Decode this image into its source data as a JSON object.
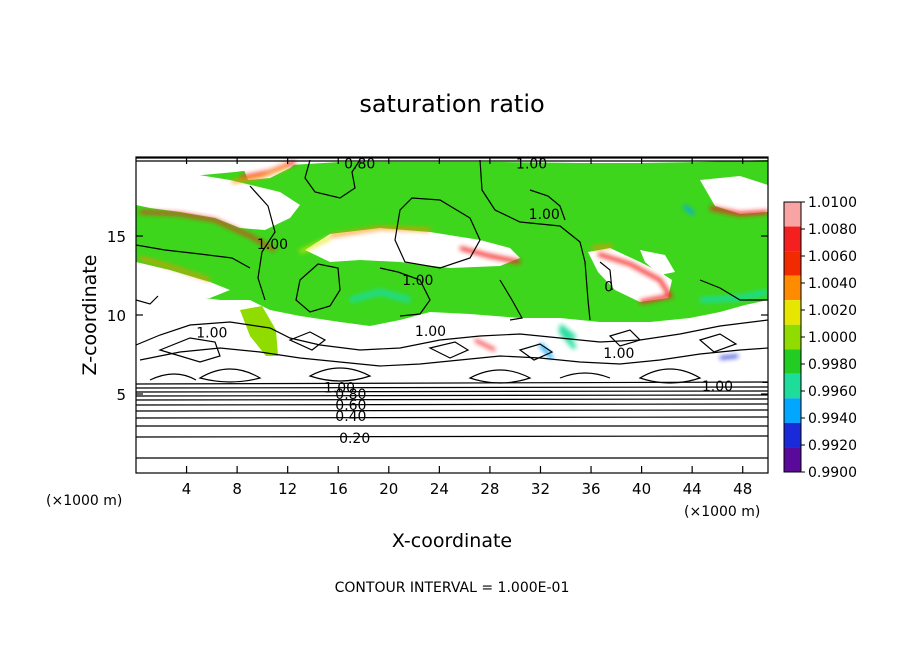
{
  "chart_data": {
    "type": "heatmap",
    "title": "saturation ratio",
    "xlabel": "X-coordinate",
    "ylabel": "Z-coordinate",
    "x_unit_label": "(×1000 m)",
    "z_unit_label": "(×1000 m)",
    "xlim": [
      0,
      50
    ],
    "ylim": [
      0,
      20
    ],
    "x_ticks": [
      4,
      8,
      12,
      16,
      20,
      24,
      28,
      32,
      36,
      40,
      44,
      48
    ],
    "y_ticks": [
      5,
      10,
      15
    ],
    "colorbar": {
      "levels": [
        "1.0100",
        "1.0080",
        "1.0060",
        "1.0040",
        "1.0020",
        "1.0000",
        "0.9980",
        "0.9960",
        "0.9940",
        "0.9920",
        "0.9900"
      ],
      "colors": [
        "#f9a4a4",
        "#f42020",
        "#f22a00",
        "#ff8c00",
        "#e6e600",
        "#90dc00",
        "#22cc22",
        "#1edc9a",
        "#00a6ff",
        "#1a2ad8",
        "#5a0a9a"
      ]
    },
    "contour_labels": [
      {
        "text": "0.80",
        "x": 17.7,
        "z": 19.6
      },
      {
        "text": "1.00",
        "x": 31.3,
        "z": 19.6
      },
      {
        "text": "1.00",
        "x": 32.3,
        "z": 16.4
      },
      {
        "text": "1.00",
        "x": 10.8,
        "z": 14.5
      },
      {
        "text": "1.00",
        "x": 22.3,
        "z": 12.2
      },
      {
        "text": "0",
        "x": 37.4,
        "z": 11.8
      },
      {
        "text": "1.00",
        "x": 6.0,
        "z": 8.9
      },
      {
        "text": "1.00",
        "x": 23.3,
        "z": 9.0
      },
      {
        "text": "1.00",
        "x": 38.2,
        "z": 7.6
      },
      {
        "text": "1.00",
        "x": 46.0,
        "z": 5.5
      },
      {
        "text": "1.00",
        "x": 16.1,
        "z": 5.4
      },
      {
        "text": "0.80",
        "x": 17.0,
        "z": 5.0
      },
      {
        "text": "0.60",
        "x": 17.0,
        "z": 4.3
      },
      {
        "text": "0.40",
        "x": 17.0,
        "z": 3.6
      },
      {
        "text": "0.20",
        "x": 17.3,
        "z": 2.2
      }
    ],
    "contour_interval_text": "CONTOUR INTERVAL = 1.000E-01"
  }
}
